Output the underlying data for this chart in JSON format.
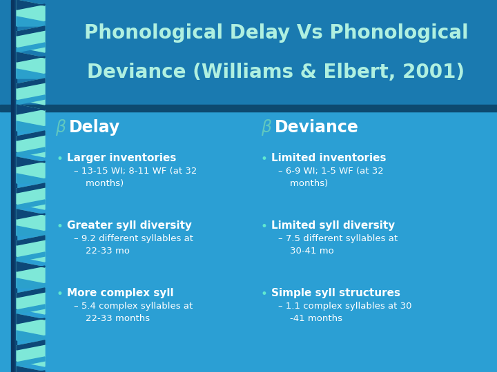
{
  "title_line1": "Phonological Delay Vs Phonological",
  "title_line2": "Deviance (Williams & Elbert, 2001)",
  "bg_color": "#2b9fd4",
  "title_bg_color": "#1a7ab0",
  "title_text_color": "#b0f0e0",
  "body_text_color": "#ffffff",
  "bullet_color": "#60e8d0",
  "header_b_color": "#60c8c0",
  "left_header": "Delay",
  "right_header": "Deviance",
  "separator_color": "#0d4a70",
  "left_items": [
    {
      "bullet": "Larger inventories",
      "sub": "– 13-15 WI; 8-11 WF (at 32\n    months)"
    },
    {
      "bullet": "Greater syll diversity",
      "sub": "– 9.2 different syllables at\n    22-33 mo"
    },
    {
      "bullet": "More complex syll",
      "sub": "– 5.4 complex syllables at\n    22-33 months"
    }
  ],
  "right_items": [
    {
      "bullet": "Limited inventories",
      "sub": "– 6-9 WI; 1-5 WF (at 32\n    months)"
    },
    {
      "bullet": "Limited syll diversity",
      "sub": "– 7.5 different syllables at\n    30-41 mo"
    },
    {
      "bullet": "Simple syll structures",
      "sub": "– 1.1 complex syllables at 30\n    -41 months"
    }
  ]
}
